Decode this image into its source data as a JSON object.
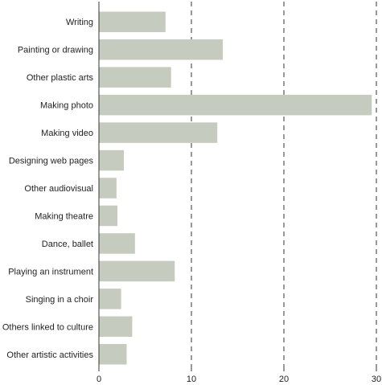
{
  "chart_data": {
    "type": "bar",
    "orientation": "horizontal",
    "title": "",
    "xlabel": "",
    "ylabel": "",
    "categories": [
      "Writing",
      "Painting or drawing",
      "Other plastic arts",
      "Making photo",
      "Making video",
      "Designing web pages",
      "Other audiovisual",
      "Making theatre",
      "Dance, ballet",
      "Playing an instrument",
      "Singing in a choir",
      "Others linked to culture",
      "Other artistic activities"
    ],
    "values": [
      7.2,
      13.4,
      7.8,
      29.5,
      12.8,
      2.7,
      1.9,
      2.0,
      3.9,
      8.2,
      2.4,
      3.6,
      3.0
    ],
    "xlim": [
      0,
      30
    ],
    "xticks": [
      "0",
      "10",
      "20",
      "30"
    ],
    "grid": "vertical dashed at 10, 20, 30",
    "colors": {
      "bar": "#c6cbbf",
      "axis": "#333333",
      "grid": "#333333",
      "text": "#222222"
    }
  }
}
